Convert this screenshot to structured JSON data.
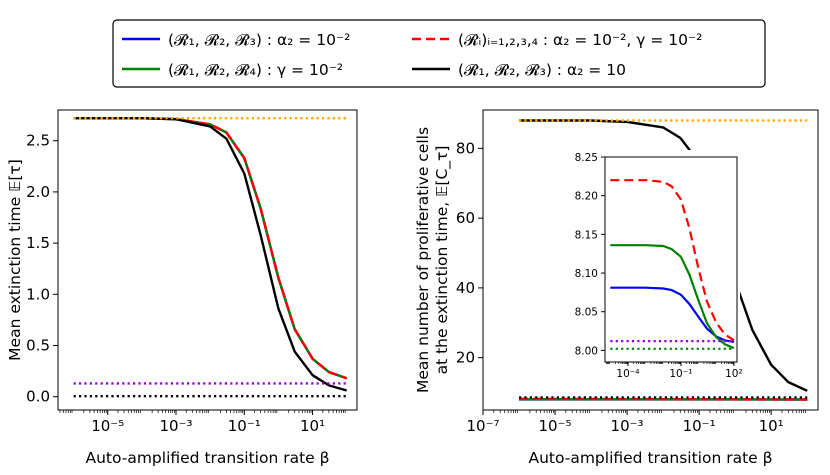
{
  "legend": {
    "entries": [
      {
        "label": "(𝓡₁, 𝓡₂, 𝓡₃) : α₂ = 10⁻²",
        "color": "#0000ff",
        "dash": "solid"
      },
      {
        "label": "(𝓡ᵢ)ᵢ₌₁,₂,₃,₄ : α₂ = 10⁻², γ = 10⁻²",
        "color": "#ff0000",
        "dash": "dashed"
      },
      {
        "label": "(𝓡₁, 𝓡₂, 𝓡₄) : γ = 10⁻²",
        "color": "#008000",
        "dash": "solid"
      },
      {
        "label": "(𝓡₁, 𝓡₂, 𝓡₃) : α₂ = 10",
        "color": "#000000",
        "dash": "solid"
      }
    ]
  },
  "chart_data": [
    {
      "type": "line",
      "xscale": "log",
      "xlabel": "Auto-amplified transition rate β",
      "ylabel": "Mean extinction time 𝔼[τ]",
      "xlim": [
        3.5e-07,
        200
      ],
      "ylim": [
        -0.13,
        2.8
      ],
      "xticks": [
        {
          "value": 1e-05,
          "label": "10⁻⁵"
        },
        {
          "value": 0.001,
          "label": "10⁻³"
        },
        {
          "value": 0.1,
          "label": "10⁻¹"
        },
        {
          "value": 10,
          "label": "10¹"
        }
      ],
      "yticks": [
        {
          "value": 0.0,
          "label": "0.0"
        },
        {
          "value": 0.5,
          "label": "0.5"
        },
        {
          "value": 1.0,
          "label": "1.0"
        },
        {
          "value": 1.5,
          "label": "1.5"
        },
        {
          "value": 2.0,
          "label": "2.0"
        },
        {
          "value": 2.5,
          "label": "2.5"
        }
      ],
      "series": [
        {
          "color": "#0000ff",
          "dash": "solid",
          "x": [
            1e-06,
            0.0001,
            0.001,
            0.01,
            0.03,
            0.1,
            0.3,
            1,
            3,
            10,
            30,
            100
          ],
          "y": [
            2.72,
            2.72,
            2.71,
            2.66,
            2.58,
            2.33,
            1.84,
            1.16,
            0.66,
            0.37,
            0.24,
            0.18
          ]
        },
        {
          "color": "#008000",
          "dash": "solid",
          "x": [
            1e-06,
            0.0001,
            0.001,
            0.01,
            0.03,
            0.1,
            0.3,
            1,
            3,
            10,
            30,
            100
          ],
          "y": [
            2.72,
            2.72,
            2.71,
            2.66,
            2.58,
            2.33,
            1.84,
            1.16,
            0.66,
            0.37,
            0.24,
            0.18
          ]
        },
        {
          "color": "#ff0000",
          "dash": "dashed",
          "x": [
            1e-06,
            0.0001,
            0.001,
            0.01,
            0.03,
            0.1,
            0.3,
            1,
            3,
            10,
            30,
            100
          ],
          "y": [
            2.72,
            2.72,
            2.71,
            2.66,
            2.58,
            2.33,
            1.84,
            1.16,
            0.66,
            0.37,
            0.24,
            0.18
          ]
        },
        {
          "color": "#000000",
          "dash": "solid",
          "x": [
            1e-06,
            0.0001,
            0.001,
            0.01,
            0.03,
            0.1,
            0.3,
            1,
            3,
            10,
            30,
            100
          ],
          "y": [
            2.72,
            2.72,
            2.71,
            2.64,
            2.52,
            2.18,
            1.58,
            0.86,
            0.44,
            0.21,
            0.11,
            0.06
          ]
        },
        {
          "color": "#ffa500",
          "dash": "dotted",
          "x": [
            1e-06,
            100
          ],
          "y": [
            2.72,
            2.72
          ]
        },
        {
          "color": "#9400d3",
          "dash": "dotted",
          "x": [
            1e-06,
            100
          ],
          "y": [
            0.13,
            0.13
          ]
        },
        {
          "color": "#000000",
          "dash": "dotted",
          "x": [
            1e-06,
            100
          ],
          "y": [
            0.005,
            0.005
          ]
        }
      ]
    },
    {
      "type": "line",
      "xscale": "log",
      "xlabel": "Auto-amplified transition rate β",
      "ylabel_lines": [
        "Mean number of proliferative cells",
        "at the extinction time, 𝔼[C_τ]"
      ],
      "xlim": [
        1e-07,
        200
      ],
      "ylim": [
        5,
        91
      ],
      "xticks": [
        {
          "value": 1e-07,
          "label": "10⁻⁷"
        },
        {
          "value": 1e-05,
          "label": "10⁻⁵"
        },
        {
          "value": 0.001,
          "label": "10⁻³"
        },
        {
          "value": 0.1,
          "label": "10⁻¹"
        },
        {
          "value": 10,
          "label": "10¹"
        }
      ],
      "yticks": [
        {
          "value": 20,
          "label": "20"
        },
        {
          "value": 40,
          "label": "40"
        },
        {
          "value": 60,
          "label": "60"
        },
        {
          "value": 80,
          "label": "80"
        }
      ],
      "series": [
        {
          "color": "#0000ff",
          "dash": "solid",
          "x": [
            1e-06,
            100
          ],
          "y": [
            8.05,
            8.01
          ]
        },
        {
          "color": "#008000",
          "dash": "solid",
          "x": [
            1e-06,
            100
          ],
          "y": [
            8.1,
            8.0
          ]
        },
        {
          "color": "#ff0000",
          "dash": "dashed",
          "x": [
            1e-06,
            100
          ],
          "y": [
            8.2,
            8.02
          ]
        },
        {
          "color": "#000000",
          "dash": "solid",
          "x": [
            1e-06,
            0.0001,
            0.001,
            0.01,
            0.03,
            0.1,
            0.3,
            1,
            3,
            10,
            30,
            100
          ],
          "y": [
            88,
            88,
            87.6,
            86,
            83,
            76,
            62,
            42,
            28,
            18,
            13,
            10.5
          ]
        },
        {
          "color": "#ffa500",
          "dash": "dotted",
          "x": [
            1e-06,
            100
          ],
          "y": [
            88,
            88
          ]
        },
        {
          "color": "#000000",
          "dash": "dotted",
          "x": [
            1e-06,
            100
          ],
          "y": [
            8.6,
            8.6
          ]
        }
      ],
      "inset": {
        "xscale": "log",
        "xlim": [
          5e-06,
          150
        ],
        "ylim": [
          7.985,
          8.25
        ],
        "xticks": [
          {
            "value": 0.0001,
            "label": "10⁻⁴"
          },
          {
            "value": 0.1,
            "label": "10⁻¹"
          },
          {
            "value": 100,
            "label": "10²"
          }
        ],
        "yticks": [
          {
            "value": 8.0,
            "label": "8.00"
          },
          {
            "value": 8.05,
            "label": "8.05"
          },
          {
            "value": 8.1,
            "label": "8.10"
          },
          {
            "value": 8.15,
            "label": "8.15"
          },
          {
            "value": 8.2,
            "label": "8.20"
          },
          {
            "value": 8.25,
            "label": "8.25"
          }
        ],
        "series": [
          {
            "color": "#0000ff",
            "dash": "solid",
            "x": [
              1e-05,
              0.001,
              0.01,
              0.03,
              0.1,
              0.3,
              1,
              3,
              10,
              30,
              100
            ],
            "y": [
              8.081,
              8.081,
              8.08,
              8.078,
              8.072,
              8.06,
              8.043,
              8.028,
              8.018,
              8.013,
              8.011
            ]
          },
          {
            "color": "#008000",
            "dash": "solid",
            "x": [
              1e-05,
              0.001,
              0.01,
              0.03,
              0.1,
              0.3,
              1,
              3,
              10,
              30,
              100
            ],
            "y": [
              8.136,
              8.136,
              8.135,
              8.131,
              8.121,
              8.098,
              8.064,
              8.035,
              8.017,
              8.008,
              8.003
            ]
          },
          {
            "color": "#ff0000",
            "dash": "dashed",
            "x": [
              1e-05,
              0.001,
              0.01,
              0.03,
              0.1,
              0.3,
              1,
              3,
              10,
              30,
              100
            ],
            "y": [
              8.22,
              8.22,
              8.218,
              8.212,
              8.195,
              8.158,
              8.105,
              8.063,
              8.036,
              8.021,
              8.013
            ]
          },
          {
            "color": "#9400d3",
            "dash": "dotted",
            "x": [
              1e-05,
              100
            ],
            "y": [
              8.012,
              8.012
            ]
          },
          {
            "color": "#008000",
            "dash": "dotted",
            "x": [
              1e-05,
              100
            ],
            "y": [
              8.002,
              8.002
            ]
          }
        ]
      }
    }
  ]
}
